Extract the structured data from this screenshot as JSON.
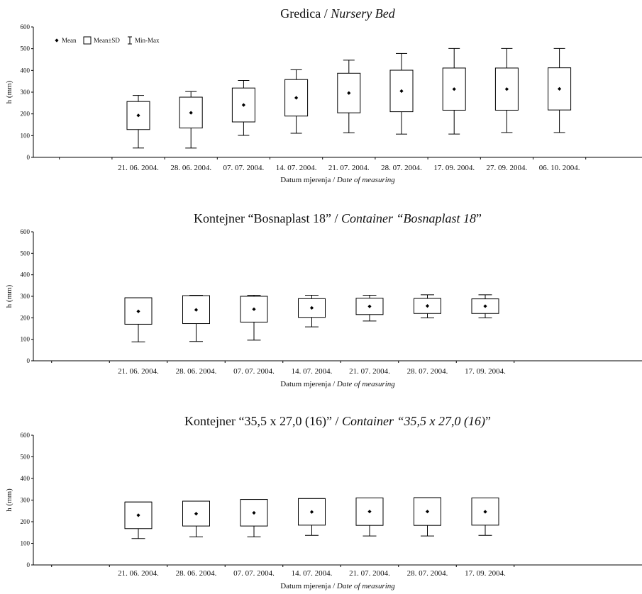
{
  "chart_data": [
    {
      "type": "box",
      "title": "Gredica / ",
      "title_italic": "Nursery Bed",
      "xlabel": "Datum mjerenja / ",
      "xlabel_italic": "Date of measuring",
      "ylabel": "h (mm)",
      "ylim": [
        0,
        600
      ],
      "yticks": [
        0,
        100,
        200,
        300,
        400,
        500,
        600
      ],
      "legend_position": "top-left",
      "legend": [
        "Mean",
        "Mean±SD",
        "Min-Max"
      ],
      "categories": [
        "21. 06. 2004.",
        "28. 06. 2004.",
        "07. 07. 2004.",
        "14. 07. 2004.",
        "21. 07. 2004.",
        "28. 07. 2004.",
        "17. 09. 2004.",
        "27. 09. 2004.",
        "06. 10. 2004."
      ],
      "mean": [
        193,
        205,
        241,
        274,
        296,
        305,
        314,
        314,
        315
      ],
      "sd_low": [
        128,
        135,
        163,
        190,
        205,
        210,
        217,
        217,
        218
      ],
      "sd_high": [
        257,
        277,
        319,
        358,
        387,
        401,
        411,
        411,
        412
      ],
      "min": [
        43,
        43,
        101,
        111,
        113,
        107,
        107,
        114,
        114
      ],
      "max": [
        285,
        303,
        354,
        403,
        447,
        478,
        501,
        501,
        501
      ]
    },
    {
      "type": "box",
      "title": "Kontejner “Bosnaplast 18” / ",
      "title_italic": "Container “Bosnaplast 18",
      "title_end": "”",
      "xlabel": "Datum mjerenja / ",
      "xlabel_italic": "Date of measuring",
      "ylabel": "h (mm)",
      "ylim": [
        0,
        600
      ],
      "yticks": [
        0,
        100,
        200,
        300,
        400,
        500,
        600
      ],
      "categories": [
        "21. 06. 2004.",
        "28. 06. 2004.",
        "07. 07. 2004.",
        "14. 07. 2004.",
        "21. 07. 2004.",
        "28. 07. 2004.",
        "17. 09. 2004."
      ],
      "mean": [
        230,
        237,
        240,
        246,
        253,
        255,
        254
      ],
      "sd_low": [
        170,
        173,
        180,
        202,
        215,
        220,
        220
      ],
      "sd_high": [
        293,
        303,
        300,
        289,
        291,
        290,
        288
      ],
      "min": [
        88,
        90,
        96,
        158,
        185,
        200,
        200
      ],
      "max": [
        293,
        305,
        305,
        305,
        305,
        307,
        307
      ]
    },
    {
      "type": "box",
      "title": "Kontejner “35,5 x 27,0 (16)” / ",
      "title_italic": "Container “35,5 x 27,0 (16)",
      "title_end": "”",
      "xlabel": "Datum mjerenja / ",
      "xlabel_italic": "Date of measuring",
      "ylabel": "h (mm)",
      "ylim": [
        0,
        600
      ],
      "yticks": [
        0,
        100,
        200,
        300,
        400,
        500,
        600
      ],
      "categories": [
        "21. 06. 2004.",
        "28. 06. 2004.",
        "07. 07. 2004.",
        "14. 07. 2004.",
        "21. 07. 2004.",
        "28. 07. 2004.",
        "17. 09. 2004."
      ],
      "mean": [
        230,
        237,
        241,
        245,
        247,
        247,
        246
      ],
      "sd_low": [
        168,
        180,
        180,
        184,
        183,
        183,
        184
      ],
      "sd_high": [
        291,
        295,
        303,
        307,
        310,
        311,
        310
      ],
      "min": [
        122,
        130,
        130,
        137,
        134,
        134,
        137
      ],
      "max": [
        291,
        295,
        303,
        307,
        310,
        311,
        310
      ]
    }
  ]
}
